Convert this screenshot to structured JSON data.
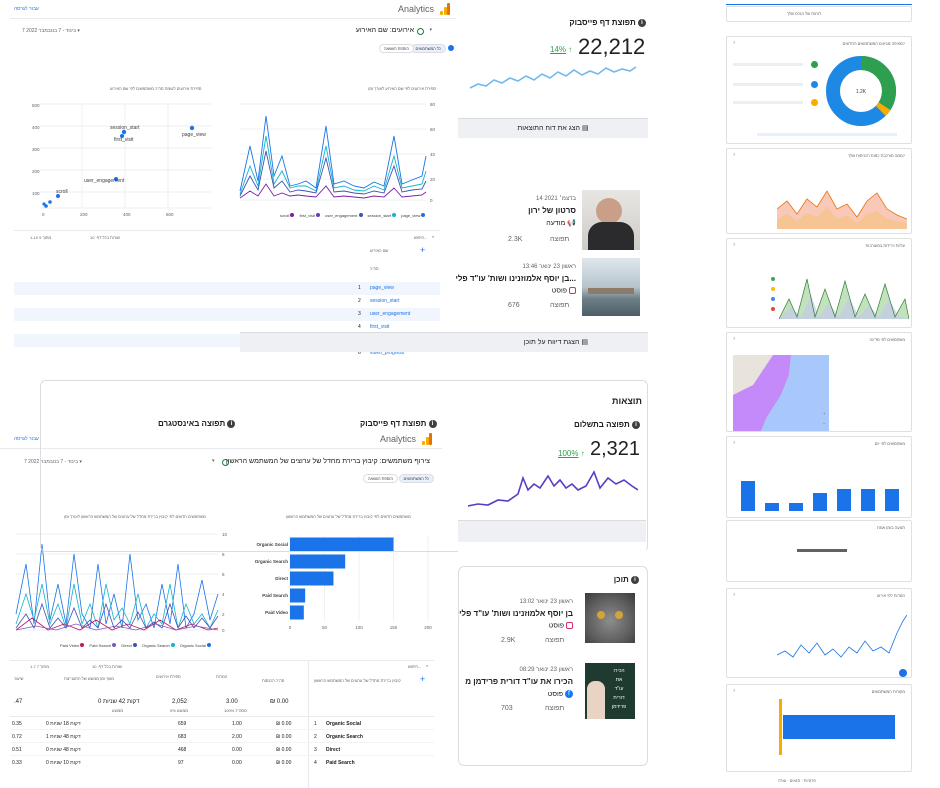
{
  "ga1": {
    "title": "Analytics",
    "top_link": "עבור לגרסה",
    "date_range": "7 בינוד - 7 בנובמבר 2022 ▾",
    "report_title": "אירועים: שם האירוע",
    "filter_all_users": "כל המשתמשים",
    "add_comparison": "הוספת השוואה",
    "chart_left_title": "ספירת אירועים לפי שם האירוע לאורך זמן",
    "chart_right_title": "ספירת אירועים לעומת סה\"כ משתמשים לפי שם האירוע",
    "scatter_labels": [
      "session_start",
      "first_visit",
      "page_view",
      "user_engagement",
      "scroll"
    ],
    "scatter_axis": [
      "0",
      "200",
      "400",
      "600"
    ],
    "scatter_y": [
      "500",
      "400",
      "300",
      "200",
      "100",
      "0"
    ],
    "line_y_left": [
      "80",
      "60",
      "40",
      "20",
      "0"
    ],
    "line_y_right": [
      "60",
      "40",
      "20",
      "0"
    ],
    "legend": [
      "page_view",
      "session_start",
      "user_engagement",
      "first_visit",
      "scroll"
    ],
    "legend_colors": [
      "#1a73e8",
      "#12b5cb",
      "#3f51b5",
      "#673ab7",
      "#7b1fa2"
    ],
    "rows_per_page": "שורות בכל דף:",
    "rows_count": "10",
    "pager": "1-10 מתוך 9",
    "search": "חיפוש...",
    "col_event": "שם האירוע",
    "col_total": "סה\"כ",
    "rows": [
      "page_view",
      "session_start",
      "user_engagement",
      "first_visit",
      "scroll",
      "video_progress"
    ]
  },
  "fb1": {
    "title": "תפוצת דף פייסבוק",
    "value": "22,212",
    "change": "14%",
    "link": "הצג את דוח התוצאות",
    "post1_date": "14 בדצמ׳ 2021",
    "post1_title": "סרטון של ירון",
    "post1_type": "מודעה",
    "post1_reach": "2.3K",
    "post1_reach_label": "תפוצה",
    "post2_date": "ראשון 23 ינואר 13:46",
    "post2_title": "בן יוסף אלמוזנינו ושות' עו\"ד פלי...",
    "post2_type": "פוסט",
    "post2_reach": "676",
    "post2_reach_label": "תפוצה",
    "content_link": "הצגת דיווח על תוכן"
  },
  "fb2": {
    "section": "תוצאות",
    "paid_title": "תפוצה בתשלום",
    "paid_value": "2,321",
    "paid_change": "100%",
    "fb_reach": "תפוצת דף פייסבוק",
    "ig_reach": "תפוצה באינסטגרם",
    "content_title": "תוכן",
    "post1_date": "ראשון 23 ינואר 13:02",
    "post1_title": "בן יוסף אלמוזנינו ושות' עו\"ד פלי",
    "post1_type": "פוסט",
    "post1_reach": "2.9K",
    "post1_reach_label": "תפוצה",
    "post2_date": "ראשון 23 ינואר 08:29",
    "post2_title": "הכירו את עו\"ד דורית פרידמן מ",
    "post2_type": "פוסט",
    "post2_reach": "703",
    "post2_reach_label": "תפוצה",
    "thumb_text": [
      "הכירו",
      "את",
      "עו\"ד",
      "דורית",
      "פרידמן"
    ]
  },
  "ga2": {
    "title": "Analytics",
    "top_link": "עבור לגרסה",
    "date_range": "7 בינוד - 7 בנובמבר 2022 ▾",
    "report_title": "צירוף משתמשים: קיבוץ ברירת מחדל של ערוצים של המשתמש הראשון",
    "filter_all_users": "כל המשתמשים",
    "add_comparison": "הוספת השוואה",
    "bar_title": "משתמשים חדשים לפי קיבוץ ברירת מחדל של ערוצים של המשתמש הראשון",
    "line_title": "משתמשים חדשים לפי קיבוץ ברירת מחדל של ערוצים של המשתמש הראשון לאורך זמן",
    "bars": [
      {
        "label": "Organic Social",
        "value": 150
      },
      {
        "label": "Organic Search",
        "value": 80
      },
      {
        "label": "Direct",
        "value": 63
      },
      {
        "label": "Paid Search",
        "value": 22
      },
      {
        "label": "Paid Video",
        "value": 20
      }
    ],
    "bar_axis": [
      "0",
      "50",
      "100",
      "150",
      "200"
    ],
    "legend": [
      "Organic Social",
      "Organic Search",
      "Direct",
      "Paid Search",
      "Paid Video"
    ],
    "legend_colors": [
      "#1a73e8",
      "#12b5cb",
      "#3f51b5",
      "#7e57c2",
      "#c2185b"
    ],
    "line_y": [
      "10",
      "8",
      "6",
      "4",
      "2",
      "0"
    ],
    "search": "חיפוש...",
    "rows_per_page": "שורות בכל דף:",
    "rows_count": "10",
    "pager": "1-7 מתוך 7",
    "headers": [
      "קיבוץ ברירת מחדל של ערוצים של המשתמש הראשון",
      "סה\"כ הכנסות",
      "המרות",
      "ספירת אירועים",
      "משך זמן ממוצע של התעניינות",
      "שיעור"
    ],
    "totals": [
      "₪ 0.00",
      "3.00",
      "2,052",
      "0 דקות 42 שניות",
      ".47"
    ],
    "totals_sub": [
      "",
      "100% מסה\"כ",
      "100% מסה\"כ",
      "0% ממוצע",
      "ממוצע"
    ],
    "rows": [
      {
        "n": "1",
        "ch": "Organic Social",
        "rev": "₪ 0.00",
        "conv": "1.00",
        "ev": "659",
        "time": "0 דקות 18 שניות",
        "r": "0.35"
      },
      {
        "n": "2",
        "ch": "Organic Search",
        "rev": "₪ 0.00",
        "conv": "2.00",
        "ev": "683",
        "time": "1 דקות 48 שניות",
        "r": "0.72"
      },
      {
        "n": "3",
        "ch": "Direct",
        "rev": "₪ 0.00",
        "conv": "0.00",
        "ev": "468",
        "time": "0 דקות 48 שניות",
        "r": "0.51"
      },
      {
        "n": "4",
        "ch": "Paid Search",
        "rev": "₪ 0.00",
        "conv": "0.00",
        "ev": "97",
        "time": "0 דקות 10 שניות",
        "r": "0.33"
      }
    ]
  },
  "strip": {
    "header": "דוחות של הנכס שלך",
    "cards": [
      "מאיפה מגיעים המשתמשים החדשים?",
      "ממה מורכבת כמות הכניסות שלך?",
      "עליות וירידות במעורבות",
      "משתמשים לפי מדינה",
      "משתמשים לפי יום",
      "תנועה בזמן אמת",
      "המרות לפי אירוע",
      "מקורות המשתמשים"
    ],
    "donut_center": "1.2K",
    "footer": "פרטיות · תנאים · עזרה"
  }
}
